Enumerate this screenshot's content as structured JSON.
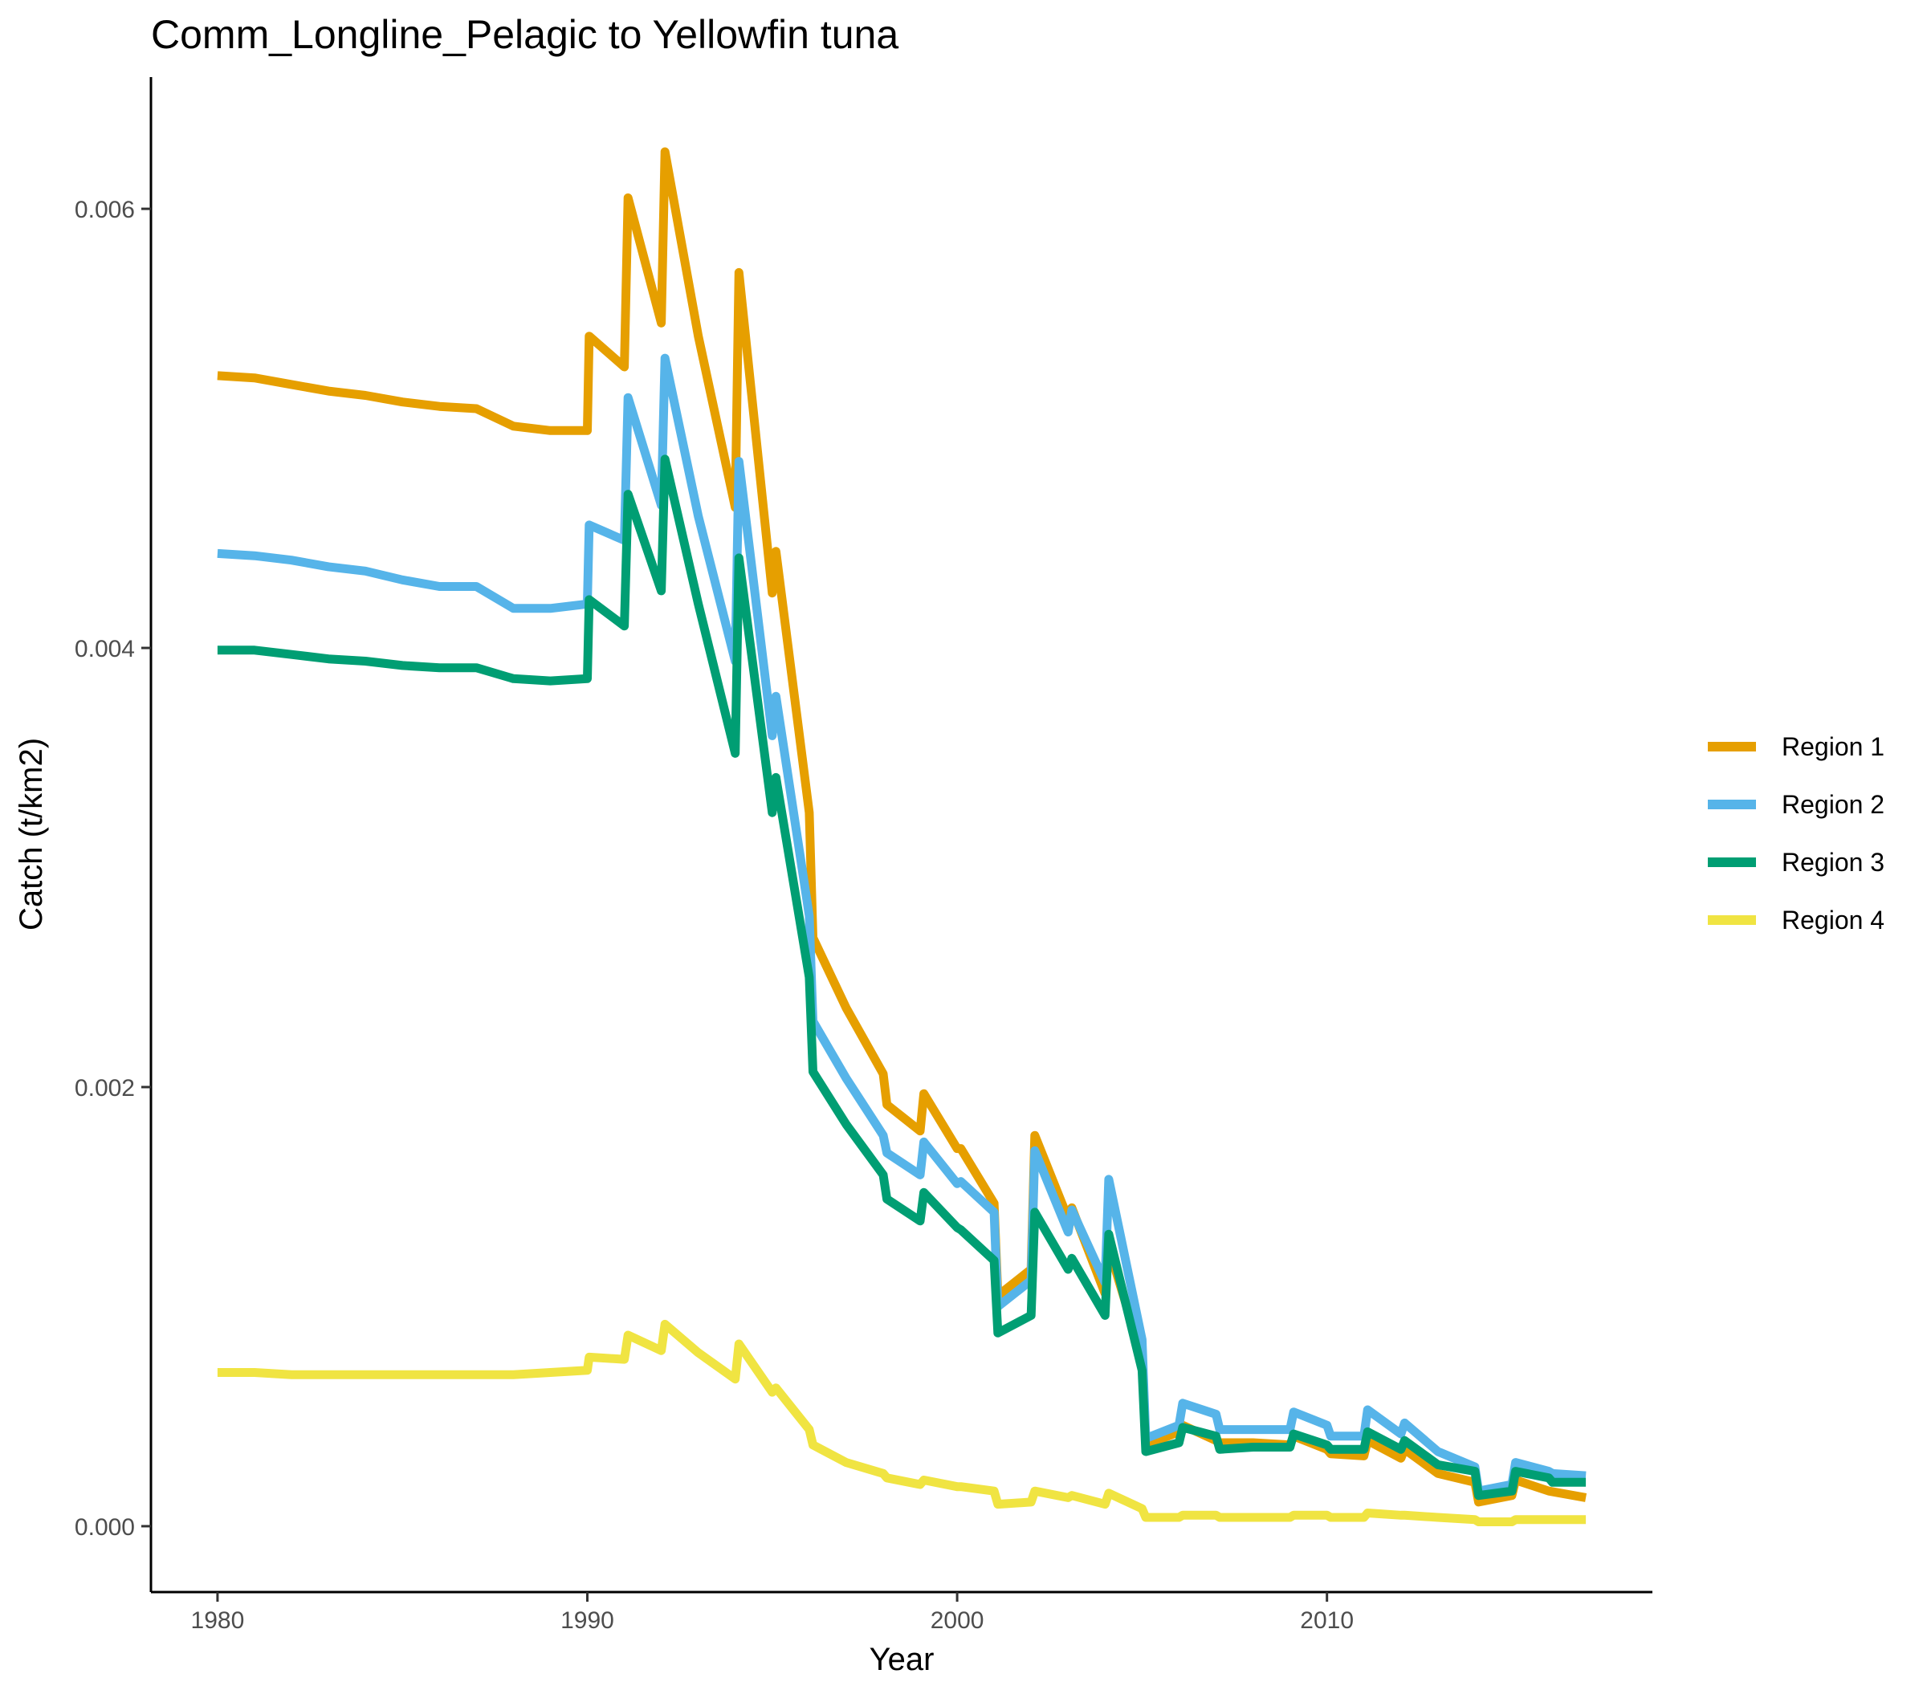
{
  "chart_data": {
    "type": "line",
    "title": "Comm_Longline_Pelagic to Yellowfin tuna",
    "xlabel": "Year",
    "ylabel": "Catch (t/km2)",
    "xlim": [
      1978.2,
      2018.8
    ],
    "ylim": [
      -0.0003,
      0.0066
    ],
    "x_ticks": [
      1980,
      1990,
      2000,
      2010
    ],
    "x_tick_labels": [
      "1980",
      "1990",
      "2000",
      "2010"
    ],
    "y_ticks": [
      0.0,
      0.002,
      0.004,
      0.006
    ],
    "y_tick_labels": [
      "0.000",
      "0.002",
      "0.004",
      "0.006"
    ],
    "grid": false,
    "legend_position": "right",
    "series": [
      {
        "name": "Region 1",
        "color": "#E69F00",
        "points": [
          [
            1980.0,
            0.00524
          ],
          [
            1981.0,
            0.00523
          ],
          [
            1982.0,
            0.0052
          ],
          [
            1983.0,
            0.00517
          ],
          [
            1984.0,
            0.00515
          ],
          [
            1985.0,
            0.00512
          ],
          [
            1986.0,
            0.0051
          ],
          [
            1987.0,
            0.00509
          ],
          [
            1988.0,
            0.00501
          ],
          [
            1989.0,
            0.00499
          ],
          [
            1990.0,
            0.00499
          ],
          [
            1990.05,
            0.00542
          ],
          [
            1991.0,
            0.00528
          ],
          [
            1991.1,
            0.00605
          ],
          [
            1992.0,
            0.00548
          ],
          [
            1992.1,
            0.00626
          ],
          [
            1993.0,
            0.00542
          ],
          [
            1994.0,
            0.00464
          ],
          [
            1994.1,
            0.00571
          ],
          [
            1995.0,
            0.00425
          ],
          [
            1995.1,
            0.00444
          ],
          [
            1996.0,
            0.00325
          ],
          [
            1996.1,
            0.00268
          ],
          [
            1997.0,
            0.00236
          ],
          [
            1998.0,
            0.00206
          ],
          [
            1998.1,
            0.00192
          ],
          [
            1999.0,
            0.0018
          ],
          [
            1999.1,
            0.00197
          ],
          [
            2000.0,
            0.00172
          ],
          [
            2000.1,
            0.00172
          ],
          [
            2001.0,
            0.00147
          ],
          [
            2001.1,
            0.00105
          ],
          [
            2002.0,
            0.00117
          ],
          [
            2002.1,
            0.00178
          ],
          [
            2003.0,
            0.0014
          ],
          [
            2003.1,
            0.00145
          ],
          [
            2004.0,
            0.00106
          ],
          [
            2004.1,
            0.00127
          ],
          [
            2005.0,
            0.00077
          ],
          [
            2005.1,
            0.00037
          ],
          [
            2006.0,
            0.00043
          ],
          [
            2006.1,
            0.00046
          ],
          [
            2007.0,
            0.00039
          ],
          [
            2007.1,
            0.00038
          ],
          [
            2008.0,
            0.00038
          ],
          [
            2009.0,
            0.00037
          ],
          [
            2009.1,
            0.00041
          ],
          [
            2010.0,
            0.00035
          ],
          [
            2010.1,
            0.00033
          ],
          [
            2011.0,
            0.00032
          ],
          [
            2011.1,
            0.00039
          ],
          [
            2012.0,
            0.00031
          ],
          [
            2012.1,
            0.00035
          ],
          [
            2013.0,
            0.00024
          ],
          [
            2014.0,
            0.0002
          ],
          [
            2014.1,
            0.00011
          ],
          [
            2015.0,
            0.00014
          ],
          [
            2015.1,
            0.00021
          ],
          [
            2016.0,
            0.00016
          ],
          [
            2017.0,
            0.00013
          ]
        ]
      },
      {
        "name": "Region 2",
        "color": "#56B4E9",
        "points": [
          [
            1980.0,
            0.00443
          ],
          [
            1981.0,
            0.00442
          ],
          [
            1982.0,
            0.0044
          ],
          [
            1983.0,
            0.00437
          ],
          [
            1984.0,
            0.00435
          ],
          [
            1985.0,
            0.00431
          ],
          [
            1986.0,
            0.00428
          ],
          [
            1987.0,
            0.00428
          ],
          [
            1988.0,
            0.00418
          ],
          [
            1989.0,
            0.00418
          ],
          [
            1990.0,
            0.0042
          ],
          [
            1990.05,
            0.00456
          ],
          [
            1991.0,
            0.00449
          ],
          [
            1991.1,
            0.00514
          ],
          [
            1992.0,
            0.00465
          ],
          [
            1992.1,
            0.00532
          ],
          [
            1993.0,
            0.0046
          ],
          [
            1994.0,
            0.00394
          ],
          [
            1994.1,
            0.00485
          ],
          [
            1995.0,
            0.0036
          ],
          [
            1995.1,
            0.00378
          ],
          [
            1996.0,
            0.00278
          ],
          [
            1996.1,
            0.0023
          ],
          [
            1997.0,
            0.00204
          ],
          [
            1998.0,
            0.00178
          ],
          [
            1998.1,
            0.0017
          ],
          [
            1999.0,
            0.0016
          ],
          [
            1999.1,
            0.00175
          ],
          [
            2000.0,
            0.00156
          ],
          [
            2000.1,
            0.00157
          ],
          [
            2001.0,
            0.00143
          ],
          [
            2001.1,
            0.001
          ],
          [
            2002.0,
            0.00112
          ],
          [
            2002.1,
            0.00171
          ],
          [
            2003.0,
            0.00134
          ],
          [
            2003.1,
            0.00144
          ],
          [
            2004.0,
            0.00111
          ],
          [
            2004.1,
            0.00158
          ],
          [
            2005.0,
            0.00085
          ],
          [
            2005.1,
            0.0004
          ],
          [
            2006.0,
            0.00046
          ],
          [
            2006.1,
            0.00056
          ],
          [
            2007.0,
            0.00051
          ],
          [
            2007.1,
            0.00044
          ],
          [
            2008.0,
            0.00044
          ],
          [
            2009.0,
            0.00044
          ],
          [
            2009.1,
            0.00052
          ],
          [
            2010.0,
            0.00046
          ],
          [
            2010.1,
            0.00041
          ],
          [
            2011.0,
            0.00041
          ],
          [
            2011.1,
            0.00053
          ],
          [
            2012.0,
            0.00042
          ],
          [
            2012.1,
            0.00047
          ],
          [
            2013.0,
            0.00034
          ],
          [
            2014.0,
            0.00027
          ],
          [
            2014.1,
            0.00016
          ],
          [
            2015.0,
            0.00019
          ],
          [
            2015.1,
            0.00029
          ],
          [
            2016.0,
            0.00025
          ],
          [
            2016.1,
            0.00024
          ],
          [
            2017.0,
            0.00023
          ]
        ]
      },
      {
        "name": "Region 3",
        "color": "#009E73",
        "points": [
          [
            1980.0,
            0.00399
          ],
          [
            1981.0,
            0.00399
          ],
          [
            1982.0,
            0.00397
          ],
          [
            1983.0,
            0.00395
          ],
          [
            1984.0,
            0.00394
          ],
          [
            1985.0,
            0.00392
          ],
          [
            1986.0,
            0.00391
          ],
          [
            1987.0,
            0.00391
          ],
          [
            1988.0,
            0.00386
          ],
          [
            1989.0,
            0.00385
          ],
          [
            1990.0,
            0.00386
          ],
          [
            1990.05,
            0.00422
          ],
          [
            1991.0,
            0.0041
          ],
          [
            1991.1,
            0.0047
          ],
          [
            1992.0,
            0.00426
          ],
          [
            1992.1,
            0.00486
          ],
          [
            1993.0,
            0.0042
          ],
          [
            1994.0,
            0.00352
          ],
          [
            1994.1,
            0.00441
          ],
          [
            1995.0,
            0.00325
          ],
          [
            1995.1,
            0.00341
          ],
          [
            1996.0,
            0.0025
          ],
          [
            1996.1,
            0.00207
          ],
          [
            1997.0,
            0.00183
          ],
          [
            1998.0,
            0.0016
          ],
          [
            1998.1,
            0.00149
          ],
          [
            1999.0,
            0.00139
          ],
          [
            1999.1,
            0.00152
          ],
          [
            2000.0,
            0.00136
          ],
          [
            2000.1,
            0.00135
          ],
          [
            2001.0,
            0.00121
          ],
          [
            2001.1,
            0.00088
          ],
          [
            2002.0,
            0.00096
          ],
          [
            2002.1,
            0.00143
          ],
          [
            2003.0,
            0.00117
          ],
          [
            2003.1,
            0.00122
          ],
          [
            2004.0,
            0.00096
          ],
          [
            2004.1,
            0.00133
          ],
          [
            2005.0,
            0.00071
          ],
          [
            2005.1,
            0.00034
          ],
          [
            2006.0,
            0.00038
          ],
          [
            2006.1,
            0.00045
          ],
          [
            2007.0,
            0.00041
          ],
          [
            2007.1,
            0.00035
          ],
          [
            2008.0,
            0.00036
          ],
          [
            2009.0,
            0.00036
          ],
          [
            2009.1,
            0.00042
          ],
          [
            2010.0,
            0.00037
          ],
          [
            2010.1,
            0.00035
          ],
          [
            2011.0,
            0.00035
          ],
          [
            2011.1,
            0.00043
          ],
          [
            2012.0,
            0.00035
          ],
          [
            2012.1,
            0.00039
          ],
          [
            2013.0,
            0.00028
          ],
          [
            2014.0,
            0.00025
          ],
          [
            2014.1,
            0.00014
          ],
          [
            2015.0,
            0.00016
          ],
          [
            2015.1,
            0.00025
          ],
          [
            2016.0,
            0.00022
          ],
          [
            2016.1,
            0.0002
          ],
          [
            2017.0,
            0.0002
          ]
        ]
      },
      {
        "name": "Region 4",
        "color": "#F0E442",
        "points": [
          [
            1980.0,
            0.0007
          ],
          [
            1981.0,
            0.0007
          ],
          [
            1982.0,
            0.00069
          ],
          [
            1983.0,
            0.00069
          ],
          [
            1984.0,
            0.00069
          ],
          [
            1985.0,
            0.00069
          ],
          [
            1986.0,
            0.00069
          ],
          [
            1987.0,
            0.00069
          ],
          [
            1988.0,
            0.00069
          ],
          [
            1989.0,
            0.0007
          ],
          [
            1990.0,
            0.00071
          ],
          [
            1990.05,
            0.00077
          ],
          [
            1991.0,
            0.00076
          ],
          [
            1991.1,
            0.00087
          ],
          [
            1992.0,
            0.0008
          ],
          [
            1992.1,
            0.00092
          ],
          [
            1993.0,
            0.00079
          ],
          [
            1994.0,
            0.00067
          ],
          [
            1994.1,
            0.00083
          ],
          [
            1995.0,
            0.00061
          ],
          [
            1995.1,
            0.00063
          ],
          [
            1996.0,
            0.00044
          ],
          [
            1996.1,
            0.00037
          ],
          [
            1997.0,
            0.00029
          ],
          [
            1998.0,
            0.00024
          ],
          [
            1998.1,
            0.00022
          ],
          [
            1999.0,
            0.00019
          ],
          [
            1999.1,
            0.00021
          ],
          [
            2000.0,
            0.00018
          ],
          [
            2000.1,
            0.00018
          ],
          [
            2001.0,
            0.00016
          ],
          [
            2001.1,
            0.0001
          ],
          [
            2002.0,
            0.00011
          ],
          [
            2002.1,
            0.00016
          ],
          [
            2003.0,
            0.00013
          ],
          [
            2003.1,
            0.00014
          ],
          [
            2004.0,
            0.0001
          ],
          [
            2004.1,
            0.00015
          ],
          [
            2005.0,
            8e-05
          ],
          [
            2005.1,
            4e-05
          ],
          [
            2006.0,
            4e-05
          ],
          [
            2006.1,
            5e-05
          ],
          [
            2007.0,
            5e-05
          ],
          [
            2007.1,
            4e-05
          ],
          [
            2008.0,
            4e-05
          ],
          [
            2009.0,
            4e-05
          ],
          [
            2009.1,
            5e-05
          ],
          [
            2010.0,
            5e-05
          ],
          [
            2010.1,
            4e-05
          ],
          [
            2011.0,
            4e-05
          ],
          [
            2011.1,
            6e-05
          ],
          [
            2012.0,
            5e-05
          ],
          [
            2012.1,
            5e-05
          ],
          [
            2013.0,
            4e-05
          ],
          [
            2014.0,
            3e-05
          ],
          [
            2014.1,
            2e-05
          ],
          [
            2015.0,
            2e-05
          ],
          [
            2015.1,
            3e-05
          ],
          [
            2016.0,
            3e-05
          ],
          [
            2017.0,
            3e-05
          ]
        ]
      }
    ]
  }
}
